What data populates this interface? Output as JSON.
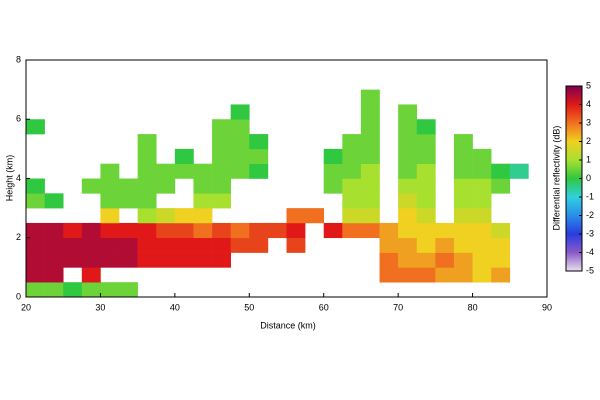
{
  "chart_data": {
    "type": "heatmap",
    "xlabel": "Distance (km)",
    "ylabel": "Height (km)",
    "zlabel": "Differential reflectivity (dB)",
    "xlim": [
      20,
      90
    ],
    "ylim": [
      0,
      8
    ],
    "xticks": [
      20,
      30,
      40,
      50,
      60,
      70,
      80,
      90
    ],
    "yticks": [
      0,
      2,
      4,
      6,
      8
    ],
    "zlim": [
      -5,
      5
    ],
    "zticks": [
      -5,
      -4,
      -3,
      -2,
      -1,
      0,
      1,
      2,
      3,
      4,
      5
    ],
    "colormap": [
      "#e8e0f0",
      "#8a5ac8",
      "#2a3ce0",
      "#2a8ee8",
      "#30d0e0",
      "#30c840",
      "#a8e030",
      "#f0d020",
      "#f07020",
      "#e01818",
      "#800050"
    ],
    "xbins": [
      20,
      22.5,
      25,
      27.5,
      30,
      32.5,
      35,
      37.5,
      40,
      42.5,
      45,
      47.5,
      50,
      52.5,
      55,
      57.5,
      60,
      62.5,
      65,
      67.5,
      70,
      72.5,
      75,
      77.5,
      80,
      82.5,
      85,
      87.5,
      90
    ],
    "ybins": [
      0,
      0.5,
      1,
      1.5,
      2,
      2.5,
      3,
      3.5,
      4,
      4.5,
      5,
      5.5,
      6,
      6.5,
      7,
      7.5,
      8
    ],
    "z": [
      [
        0.5,
        0.5,
        0,
        0.5,
        0.5,
        0.5,
        null,
        null,
        null,
        null,
        null,
        null,
        null,
        null,
        null,
        null,
        null,
        null,
        null,
        null,
        null,
        null,
        null,
        null,
        null,
        null,
        null,
        null
      ],
      [
        4.5,
        4.5,
        null,
        4,
        null,
        null,
        null,
        null,
        null,
        null,
        null,
        null,
        null,
        null,
        null,
        null,
        null,
        null,
        null,
        3,
        3,
        3,
        2.5,
        2.5,
        2,
        2.5,
        null,
        null
      ],
      [
        4.5,
        4.5,
        4.5,
        4.5,
        4.5,
        4.5,
        4,
        4,
        4,
        4,
        4,
        null,
        null,
        null,
        null,
        null,
        null,
        null,
        null,
        3,
        2.5,
        2.5,
        3,
        2.5,
        2,
        2,
        null,
        null
      ],
      [
        4.5,
        4.5,
        4.5,
        4.5,
        4.5,
        4.5,
        4,
        4,
        4,
        4,
        4,
        3.5,
        3.5,
        null,
        3.5,
        null,
        null,
        null,
        null,
        2.5,
        2.5,
        2,
        2.5,
        2,
        2,
        2,
        null,
        null
      ],
      [
        4.5,
        4.5,
        4,
        4.5,
        4,
        4,
        4,
        3.5,
        3.5,
        3,
        3.5,
        3,
        3.5,
        3.5,
        4,
        null,
        4,
        3,
        3,
        2.5,
        2,
        2,
        2,
        2,
        2,
        1.5,
        null,
        null
      ],
      [
        null,
        null,
        null,
        null,
        2,
        null,
        1,
        1.5,
        2,
        2,
        null,
        null,
        null,
        null,
        3,
        3,
        null,
        1.5,
        1.5,
        null,
        2,
        1.5,
        null,
        1.5,
        1.5,
        null,
        null,
        null
      ],
      [
        0.5,
        0,
        null,
        null,
        0.5,
        0.5,
        0.5,
        null,
        null,
        1,
        1,
        null,
        null,
        null,
        null,
        null,
        null,
        1,
        1,
        null,
        1.5,
        1,
        null,
        1,
        1,
        null,
        null,
        null
      ],
      [
        0,
        null,
        null,
        0.5,
        0.5,
        0.5,
        0.5,
        0.5,
        null,
        0.5,
        0.5,
        null,
        null,
        null,
        null,
        null,
        0.5,
        1,
        1,
        null,
        1,
        1,
        null,
        1,
        1,
        0.5,
        null,
        null
      ],
      [
        null,
        null,
        null,
        null,
        0.5,
        null,
        0.5,
        0.5,
        0.5,
        0.5,
        0.5,
        0.5,
        0,
        null,
        null,
        null,
        0.5,
        0.5,
        1,
        null,
        0.5,
        1,
        null,
        0.5,
        0.5,
        0,
        -0.5,
        null
      ],
      [
        null,
        null,
        null,
        null,
        null,
        null,
        0.5,
        null,
        0,
        null,
        0.5,
        0.5,
        0.5,
        null,
        null,
        null,
        0,
        0.5,
        0.5,
        null,
        0.5,
        0.5,
        null,
        0.5,
        0.5,
        null,
        null,
        null
      ],
      [
        null,
        null,
        null,
        null,
        null,
        null,
        0.5,
        null,
        null,
        null,
        0.5,
        0.5,
        0,
        null,
        null,
        null,
        null,
        0.5,
        0.5,
        null,
        0.5,
        0.5,
        null,
        0.5,
        null,
        null,
        null,
        null
      ],
      [
        0,
        null,
        null,
        null,
        null,
        null,
        null,
        null,
        null,
        null,
        0.5,
        0.5,
        null,
        null,
        null,
        null,
        null,
        null,
        0.5,
        null,
        0.5,
        0,
        null,
        null,
        null,
        null,
        null,
        null
      ],
      [
        null,
        null,
        null,
        null,
        null,
        null,
        null,
        null,
        null,
        null,
        null,
        0,
        null,
        null,
        null,
        null,
        null,
        null,
        0.5,
        null,
        0.5,
        null,
        null,
        null,
        null,
        null,
        null,
        null
      ],
      [
        null,
        null,
        null,
        null,
        null,
        null,
        null,
        null,
        null,
        null,
        null,
        null,
        null,
        null,
        null,
        null,
        null,
        null,
        0.5,
        null,
        null,
        null,
        null,
        null,
        null,
        null,
        null,
        null
      ],
      [
        null,
        null,
        null,
        null,
        null,
        null,
        null,
        null,
        null,
        null,
        null,
        null,
        null,
        null,
        null,
        null,
        null,
        null,
        null,
        null,
        null,
        null,
        null,
        null,
        null,
        null,
        null,
        null
      ],
      [
        null,
        null,
        null,
        null,
        null,
        null,
        null,
        null,
        null,
        null,
        null,
        null,
        null,
        null,
        null,
        null,
        null,
        null,
        null,
        null,
        null,
        null,
        null,
        null,
        null,
        null,
        null,
        null
      ]
    ]
  }
}
